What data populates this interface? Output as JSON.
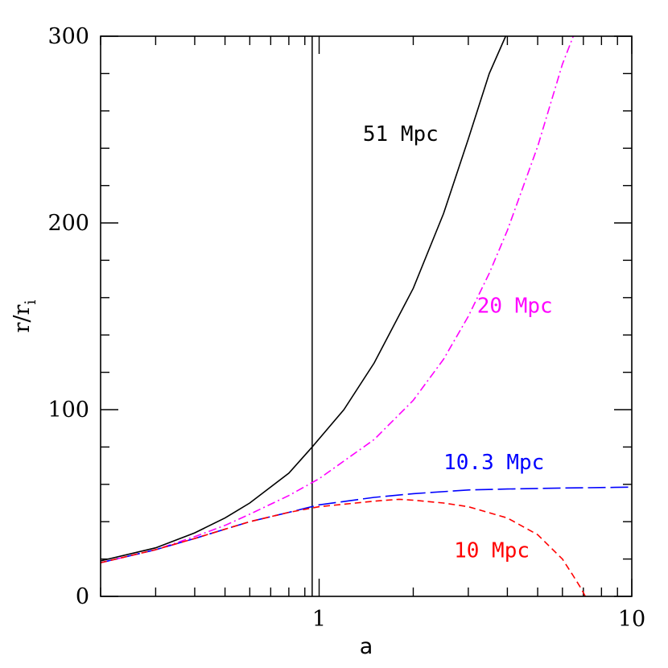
{
  "chart_data": {
    "type": "line",
    "xlabel": "a",
    "ylabel": {
      "main": "r/r",
      "subscript": "i"
    },
    "xscale": "log",
    "xlim": [
      0.2,
      10
    ],
    "ylim": [
      0,
      300
    ],
    "xticks": [
      {
        "value": 1,
        "label": "1"
      },
      {
        "value": 10,
        "label": "10"
      }
    ],
    "yticks": [
      {
        "value": 0,
        "label": "0"
      },
      {
        "value": 100,
        "label": "100"
      },
      {
        "value": 200,
        "label": "200"
      },
      {
        "value": 300,
        "label": "300"
      }
    ],
    "vertical_line_x": 0.95,
    "series": [
      {
        "name": "51 Mpc",
        "color": "#000000",
        "dash": "solid",
        "x": [
          0.2,
          0.3,
          0.4,
          0.5,
          0.6,
          0.8,
          0.95,
          1.2,
          1.5,
          2.0,
          2.5,
          3.0,
          3.5,
          3.95
        ],
        "y": [
          19,
          26,
          34,
          42,
          50,
          66,
          80,
          100,
          125,
          165,
          205,
          245,
          280,
          300
        ],
        "label_x": 1.38,
        "label_y": 244
      },
      {
        "name": "20 Mpc",
        "color": "#ff00ff",
        "dash": "dashdot",
        "x": [
          0.2,
          0.3,
          0.4,
          0.5,
          0.6,
          0.8,
          1.0,
          1.5,
          2.0,
          2.5,
          3.0,
          3.5,
          4.0,
          5.0,
          6.0,
          6.5
        ],
        "y": [
          18,
          25,
          32,
          38,
          44,
          54,
          63,
          84,
          105,
          127,
          150,
          173,
          196,
          241,
          285,
          300
        ],
        "label_x": 3.2,
        "label_y": 152
      },
      {
        "name": "10.3 Mpc",
        "color": "#0000ff",
        "dash": "longdash",
        "x": [
          0.2,
          0.3,
          0.4,
          0.5,
          0.6,
          0.8,
          1.0,
          1.5,
          2.0,
          3.0,
          4.0,
          6.0,
          10.0
        ],
        "y": [
          18,
          25,
          31,
          36,
          40,
          45,
          49,
          53,
          55,
          57,
          57.5,
          58,
          58.5
        ],
        "label_x": 2.5,
        "label_y": 68
      },
      {
        "name": "10 Mpc",
        "color": "#ff0000",
        "dash": "shortdash",
        "x": [
          0.2,
          0.3,
          0.4,
          0.5,
          0.6,
          0.8,
          1.0,
          1.5,
          1.8,
          2.0,
          2.5,
          3.0,
          4.0,
          5.0,
          6.0,
          6.5,
          6.9,
          7.1
        ],
        "y": [
          18,
          25,
          31,
          36,
          40,
          45,
          48,
          51,
          52,
          51.5,
          50,
          48,
          42,
          33,
          20,
          11,
          4,
          0
        ],
        "label_x": 2.7,
        "label_y": 21
      }
    ]
  }
}
